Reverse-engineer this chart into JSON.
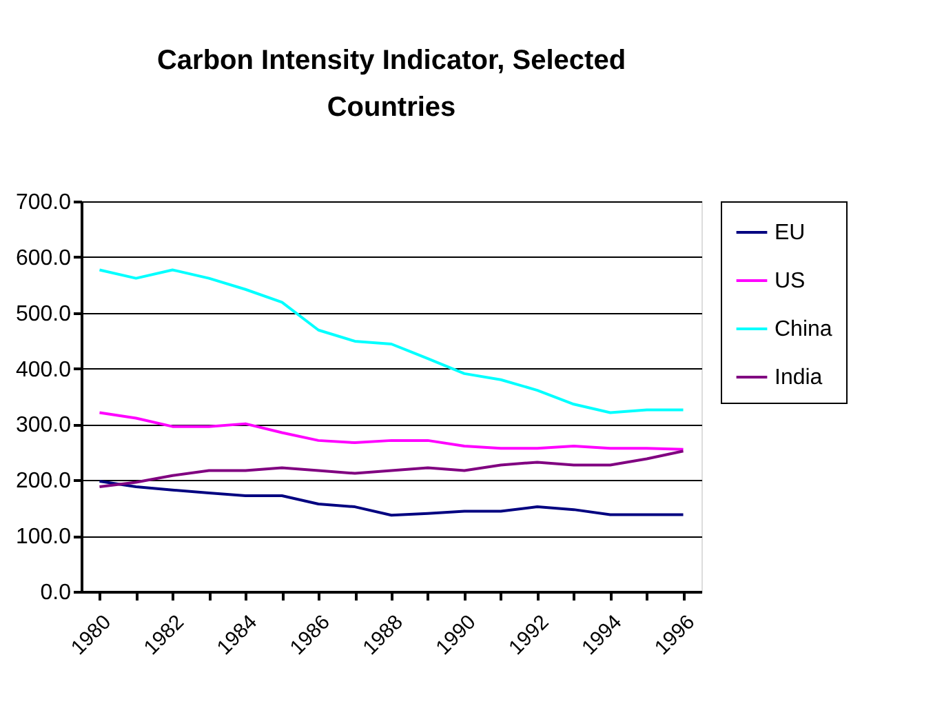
{
  "chart_data": {
    "type": "line",
    "title": "Carbon Intensity Indicator, Selected Countries",
    "categories": [
      "1980",
      null,
      "1982",
      null,
      "1984",
      null,
      "1986",
      null,
      "1988",
      null,
      "1990",
      null,
      "1992",
      null,
      "1994",
      null,
      "1996"
    ],
    "series": [
      {
        "name": "EU",
        "color": "#000080",
        "values": [
          198,
          188,
          182,
          177,
          172,
          172,
          157,
          152,
          137,
          140,
          144,
          144,
          152,
          147,
          138,
          138,
          138
        ]
      },
      {
        "name": "US",
        "color": "#ff00ff",
        "values": [
          321,
          311,
          296,
          296,
          301,
          285,
          271,
          267,
          271,
          271,
          261,
          257,
          257,
          261,
          257,
          257,
          255
        ]
      },
      {
        "name": "China",
        "color": "#00ffff",
        "values": [
          577,
          562,
          577,
          562,
          542,
          519,
          469,
          449,
          444,
          418,
          391,
          380,
          361,
          336,
          321,
          326,
          326
        ]
      },
      {
        "name": "India",
        "color": "#800080",
        "values": [
          188,
          196,
          208,
          217,
          217,
          222,
          217,
          212,
          217,
          222,
          217,
          227,
          232,
          227,
          227,
          238,
          252
        ]
      }
    ],
    "ylim": [
      0,
      700
    ],
    "yticks": [
      {
        "value": 0,
        "label": "0.0"
      },
      {
        "value": 100,
        "label": "100.0"
      },
      {
        "value": 200,
        "label": "200.0"
      },
      {
        "value": 300,
        "label": "300.0"
      },
      {
        "value": 400,
        "label": "400.0"
      },
      {
        "value": 500,
        "label": "500.0"
      },
      {
        "value": 600,
        "label": "600.0"
      },
      {
        "value": 700,
        "label": "700.0"
      }
    ],
    "grid": "y",
    "legend": "right",
    "marker": "none",
    "line_style": "solid"
  }
}
